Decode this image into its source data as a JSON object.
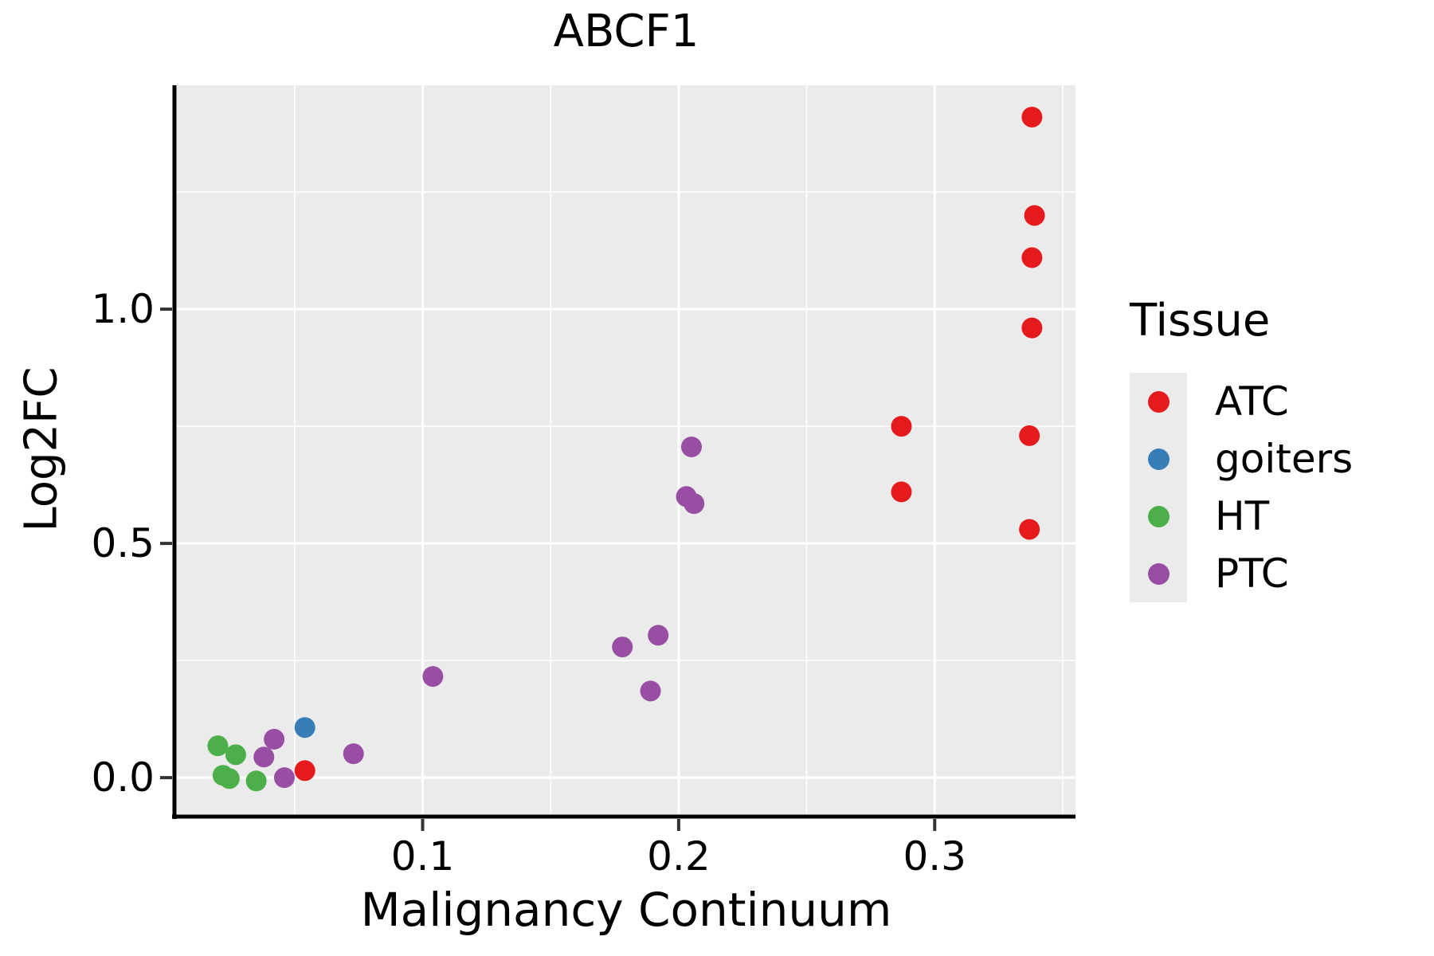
{
  "title": "ABCF1",
  "panel": {
    "bg": "#EBEBEB",
    "grid_color": "#FFFFFF",
    "axis_color": "#000000",
    "tick_color": "#333333",
    "text_color": "#000000"
  },
  "axes": {
    "x": {
      "label": "Malignancy Continuum",
      "tick_labels": [
        "0.1",
        "0.2",
        "0.3"
      ]
    },
    "y": {
      "label": "Log2FC",
      "tick_labels": [
        "0.0",
        "0.5",
        "1.0"
      ]
    }
  },
  "legend": {
    "title": "Tissue",
    "entries": [
      {
        "label": "ATC",
        "color": "#E41A1C"
      },
      {
        "label": "goiters",
        "color": "#377EB8"
      },
      {
        "label": "HT",
        "color": "#4DAF4A"
      },
      {
        "label": "PTC",
        "color": "#984EA3"
      }
    ]
  },
  "chart_data": {
    "type": "scatter",
    "title": "ABCF1",
    "xlabel": "Malignancy Continuum",
    "ylabel": "Log2FC",
    "xlim": [
      0.004,
      0.355
    ],
    "ylim": [
      -0.078,
      1.478
    ],
    "x_ticks": [
      0.1,
      0.2,
      0.3
    ],
    "x_minor_ticks": [
      0.05,
      0.15,
      0.25,
      0.35
    ],
    "y_ticks": [
      0.0,
      0.5,
      1.0
    ],
    "y_minor_ticks": [
      0.25,
      0.75,
      1.25
    ],
    "grid": true,
    "legend_title": "Tissue",
    "legend_position": "right",
    "point_radius_px": 13,
    "series": [
      {
        "name": "ATC",
        "color": "#E41A1C",
        "points": [
          [
            0.338,
            1.41
          ],
          [
            0.339,
            1.2
          ],
          [
            0.338,
            1.11
          ],
          [
            0.338,
            0.96
          ],
          [
            0.287,
            0.75
          ],
          [
            0.337,
            0.73
          ],
          [
            0.287,
            0.61
          ],
          [
            0.337,
            0.53
          ],
          [
            0.054,
            0.015
          ]
        ]
      },
      {
        "name": "goiters",
        "color": "#377EB8",
        "points": [
          [
            0.054,
            0.107
          ]
        ]
      },
      {
        "name": "HT",
        "color": "#4DAF4A",
        "points": [
          [
            0.02,
            0.068
          ],
          [
            0.027,
            0.049
          ],
          [
            0.022,
            0.005
          ],
          [
            0.0245,
            -0.002
          ],
          [
            0.035,
            -0.007
          ]
        ]
      },
      {
        "name": "PTC",
        "color": "#984EA3",
        "points": [
          [
            0.038,
            0.044
          ],
          [
            0.042,
            0.082
          ],
          [
            0.046,
            0.0
          ],
          [
            0.073,
            0.051
          ],
          [
            0.104,
            0.216
          ],
          [
            0.189,
            0.185
          ],
          [
            0.178,
            0.279
          ],
          [
            0.192,
            0.304
          ],
          [
            0.206,
            0.585
          ],
          [
            0.203,
            0.6
          ],
          [
            0.205,
            0.706
          ]
        ]
      }
    ]
  }
}
